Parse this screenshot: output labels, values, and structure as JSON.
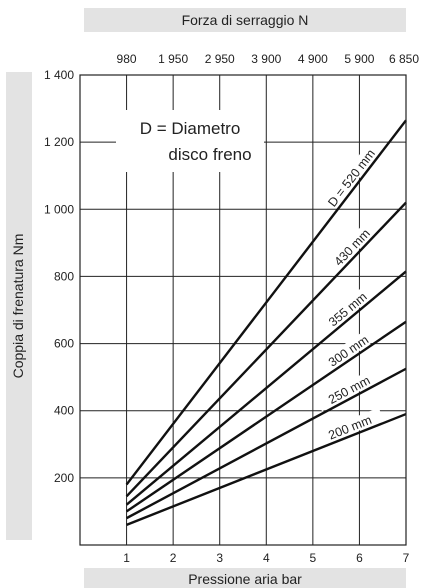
{
  "chart_data": {
    "type": "line",
    "top_axis": {
      "title": "Forza di serraggio N",
      "tick_labels": [
        "980",
        "1 950",
        "2 950",
        "3 900",
        "4 900",
        "5 900",
        "6 850"
      ]
    },
    "xlabel": "Pressione aria bar",
    "ylabel": "Coppia di frenatura Nm",
    "x_ticks": [
      1,
      2,
      3,
      4,
      5,
      6,
      7
    ],
    "y_ticks": [
      200,
      400,
      600,
      800,
      1000,
      1200,
      1400
    ],
    "y_tick_labels": [
      "200",
      "400",
      "600",
      "800",
      "1 000",
      "1 200",
      "1 400"
    ],
    "xlim": [
      0,
      7
    ],
    "ylim": [
      0,
      1400
    ],
    "grid": true,
    "legend_text": [
      "D = Diametro",
      "disco freno"
    ],
    "series": [
      {
        "name": "D = 520 mm",
        "x": [
          1,
          7
        ],
        "values": [
          180,
          1265
        ]
      },
      {
        "name": "430 mm",
        "x": [
          1,
          7
        ],
        "values": [
          145,
          1020
        ]
      },
      {
        "name": "355 mm",
        "x": [
          1,
          7
        ],
        "values": [
          120,
          815
        ]
      },
      {
        "name": "300 mm",
        "x": [
          1,
          7
        ],
        "values": [
          100,
          665
        ]
      },
      {
        "name": "250 mm",
        "x": [
          1,
          7
        ],
        "values": [
          80,
          525
        ]
      },
      {
        "name": "200 mm",
        "x": [
          1,
          7
        ],
        "values": [
          60,
          390
        ]
      }
    ]
  }
}
